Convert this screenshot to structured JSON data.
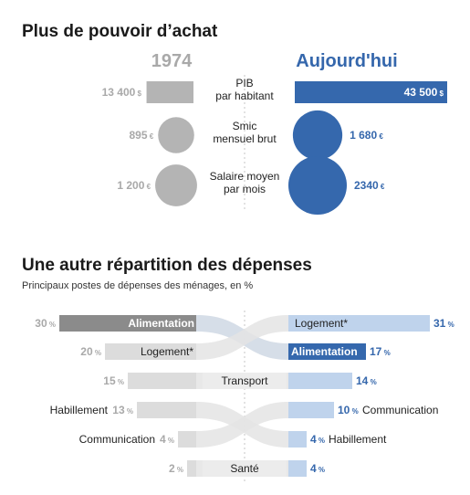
{
  "colors": {
    "past": "#b4b4b4",
    "past_dark": "#8b8b8b",
    "now": "#3568ad",
    "now_light": "#b9cde8",
    "row_past": "#dcdcdc",
    "row_now": "#bfd3ec",
    "ribbon": "#e4e4e4"
  },
  "chart_data": [
    {
      "type": "bar",
      "title": "Plus de pouvoir d’achat",
      "year_labels": [
        "1974",
        "Aujourd'hui"
      ],
      "rows": [
        {
          "label": [
            "PIB",
            "par habitant"
          ],
          "past": 13400,
          "now": 43500,
          "past_label": "13 400",
          "now_label": "43 500",
          "unit": "$",
          "shape": "bar"
        },
        {
          "label": [
            "Smic",
            "mensuel brut"
          ],
          "past": 895,
          "now": 1680,
          "past_label": "895",
          "now_label": "1 680",
          "unit": "€",
          "shape": "circle"
        },
        {
          "label": [
            "Salaire moyen",
            "par mois"
          ],
          "past": 1200,
          "now": 2340,
          "past_label": "1 200",
          "now_label": "2340",
          "unit": "€",
          "shape": "circle"
        }
      ]
    },
    {
      "type": "bar",
      "title": "Une autre répartition des dépenses",
      "subtitle": "Principaux postes de dépenses des ménages, en %",
      "unit": "%",
      "past": [
        {
          "name": "Alimentation",
          "value": 30
        },
        {
          "name": "Logement*",
          "value": 20
        },
        {
          "name": "",
          "value": 15
        },
        {
          "name": "Habillement",
          "value": 13
        },
        {
          "name": "Communication",
          "value": 4
        },
        {
          "name": "",
          "value": 2
        }
      ],
      "now": [
        {
          "name": "Logement*",
          "value": 31
        },
        {
          "name": "Alimentation",
          "value": 17
        },
        {
          "name": "",
          "value": 14
        },
        {
          "name": "Communication",
          "value": 10
        },
        {
          "name": "Habillement",
          "value": 4
        },
        {
          "name": "",
          "value": 4
        }
      ],
      "center_labels": [
        "",
        "",
        "Transport",
        "",
        "",
        "Santé"
      ],
      "links": [
        [
          0,
          1
        ],
        [
          1,
          0
        ],
        [
          2,
          2
        ],
        [
          3,
          4
        ],
        [
          4,
          3
        ],
        [
          5,
          5
        ]
      ]
    }
  ]
}
